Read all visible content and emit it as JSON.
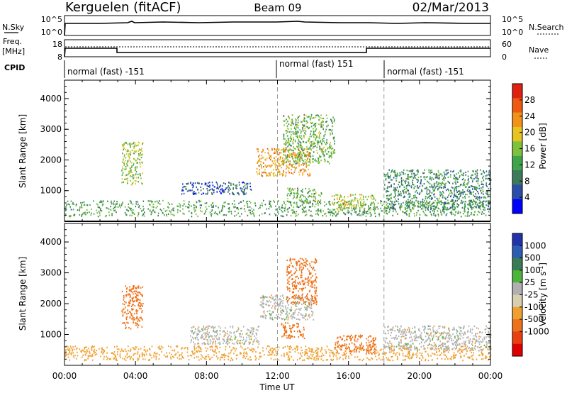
{
  "header": {
    "station": "Kerguelen (fitACF)",
    "beam": "Beam 09",
    "date": "02/Mar/2013"
  },
  "strips": {
    "nsky_label": "N.Sky",
    "nsky_ticks": [
      "10^5",
      "10^0"
    ],
    "nsearch_label": "N.Search",
    "nsearch_ticks": [
      "10^5",
      "10^0"
    ],
    "freq_label_line1": "Freq.",
    "freq_label_line2": "[MHz]",
    "freq_ticks": [
      "18",
      "8"
    ],
    "nave_label": "Nave",
    "nave_ticks": [
      "60",
      "0"
    ],
    "cpid_label": "CPID"
  },
  "cpid_segments": [
    {
      "label": "normal (fast) -151",
      "start_hour": 0
    },
    {
      "label": "normal (fast) 151",
      "start_hour": 12
    },
    {
      "label": "normal (fast) -151",
      "start_hour": 18
    }
  ],
  "colors": {
    "power_scale": [
      "#0000ff",
      "#2b4ea8",
      "#3d7a5a",
      "#40a44a",
      "#7ec13b",
      "#e8c422",
      "#f39219",
      "#ee5a10",
      "#e02010"
    ],
    "velocity_scale": [
      "#2233aa",
      "#2d5cb5",
      "#3a7a55",
      "#4db33c",
      "#c0c0c0",
      "#d8cfb0",
      "#f0a030",
      "#ee7018",
      "#e84010",
      "#e00000"
    ],
    "ground_scatter": "#b0b0b0"
  },
  "chart_data": [
    {
      "type": "heatmap",
      "panel": "power",
      "xlabel": "",
      "ylabel": "Slant Range [km]",
      "x_range_hours": [
        0,
        24
      ],
      "ylim": [
        0,
        4600
      ],
      "y_ticks": [
        "1000",
        "2000",
        "3000",
        "4000"
      ],
      "colorbar": {
        "label": "Power [dB]",
        "range": [
          0,
          32
        ],
        "ticks": [
          "4",
          "8",
          "12",
          "16",
          "20",
          "24",
          "28"
        ]
      },
      "echo_regions": [
        {
          "t_start": 0.0,
          "t_end": 24.0,
          "r_min": 180,
          "r_max": 700,
          "value": 12
        },
        {
          "t_start": 3.2,
          "t_end": 4.4,
          "r_min": 1200,
          "r_max": 2600,
          "value": 16
        },
        {
          "t_start": 6.5,
          "t_end": 10.5,
          "r_min": 900,
          "r_max": 1300,
          "value": 6
        },
        {
          "t_start": 10.8,
          "t_end": 13.8,
          "r_min": 1500,
          "r_max": 2400,
          "value": 22
        },
        {
          "t_start": 12.3,
          "t_end": 15.2,
          "r_min": 1900,
          "r_max": 3500,
          "value": 14
        },
        {
          "t_start": 12.5,
          "t_end": 14.5,
          "r_min": 600,
          "r_max": 1100,
          "value": 14
        },
        {
          "t_start": 15.0,
          "t_end": 17.5,
          "r_min": 400,
          "r_max": 900,
          "value": 18
        },
        {
          "t_start": 18.0,
          "t_end": 24.0,
          "r_min": 400,
          "r_max": 1700,
          "value": 10
        }
      ]
    },
    {
      "type": "heatmap",
      "panel": "velocity",
      "xlabel": "Time UT",
      "ylabel": "Slant Range [km]",
      "x_range_hours": [
        0,
        24
      ],
      "x_ticks": [
        "00:00",
        "04:00",
        "08:00",
        "12:00",
        "16:00",
        "20:00",
        "00:00"
      ],
      "ylim": [
        0,
        4600
      ],
      "y_ticks": [
        "1000",
        "2000",
        "3000",
        "4000"
      ],
      "colorbar": {
        "label": "Velocity [m s",
        "label_superscript": "-1",
        "label_close": "]",
        "ticks": [
          "1000",
          "500",
          "100",
          "25",
          "-25",
          "-100",
          "-500",
          "-1000"
        ]
      },
      "echo_regions": [
        {
          "t_start": 0.0,
          "t_end": 24.0,
          "r_min": 180,
          "r_max": 650,
          "value": -60
        },
        {
          "t_start": 3.2,
          "t_end": 4.4,
          "r_min": 1200,
          "r_max": 2600,
          "value": -300
        },
        {
          "t_start": 7.0,
          "t_end": 11.0,
          "r_min": 700,
          "r_max": 1300,
          "value": 0
        },
        {
          "t_start": 11.0,
          "t_end": 14.0,
          "r_min": 1500,
          "r_max": 2300,
          "value": 0
        },
        {
          "t_start": 12.5,
          "t_end": 14.2,
          "r_min": 2000,
          "r_max": 3500,
          "value": -200
        },
        {
          "t_start": 12.2,
          "t_end": 13.5,
          "r_min": 900,
          "r_max": 1400,
          "value": -300
        },
        {
          "t_start": 15.2,
          "t_end": 17.5,
          "r_min": 400,
          "r_max": 1000,
          "value": -300
        },
        {
          "t_start": 18.0,
          "t_end": 24.0,
          "r_min": 500,
          "r_max": 1300,
          "value": 0
        }
      ]
    }
  ]
}
